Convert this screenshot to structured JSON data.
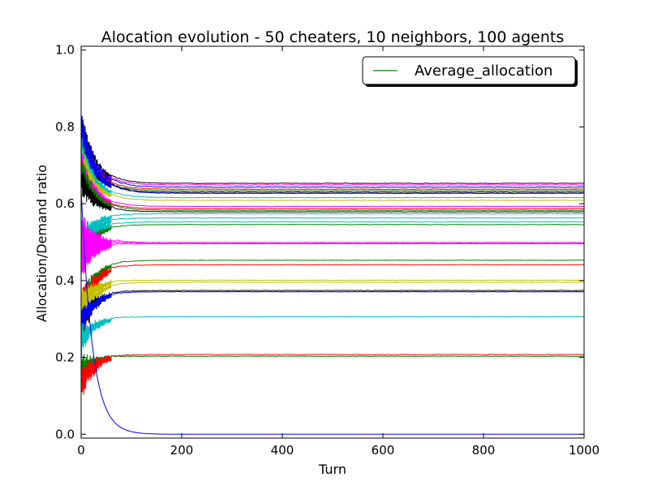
{
  "chart_data": {
    "type": "line",
    "title": "Alocation evolution - 50 cheaters, 10 neighbors, 100 agents",
    "xlabel": "Turn",
    "ylabel": "Allocation/Demand ratio",
    "xlim": [
      0,
      1000
    ],
    "ylim": [
      -0.01,
      1.01
    ],
    "xticks": [
      0,
      200,
      400,
      600,
      800,
      1000
    ],
    "xtick_labels": [
      "0",
      "200",
      "400",
      "600",
      "800",
      "1000"
    ],
    "yticks": [
      0.0,
      0.2,
      0.4,
      0.6,
      0.8,
      1.0
    ],
    "ytick_labels": [
      "0.0",
      "0.2",
      "0.4",
      "0.6",
      "0.8",
      "1.0"
    ],
    "grid": false,
    "legend": {
      "placement": "top-right",
      "entries": [
        {
          "name": "Average_allocation",
          "color": "#008000"
        }
      ]
    },
    "series": [
      {
        "color": "#000000",
        "start": 0.8,
        "final": 0.652,
        "noise": 0.014
      },
      {
        "color": "#ff00ff",
        "start": 0.78,
        "final": 0.648,
        "noise": 0.012
      },
      {
        "color": "#0000ff",
        "start": 0.79,
        "final": 0.642,
        "noise": 0.016
      },
      {
        "color": "#ff0000",
        "start": 0.77,
        "final": 0.637,
        "noise": 0.012
      },
      {
        "color": "#008000",
        "start": 0.76,
        "final": 0.633,
        "noise": 0.012
      },
      {
        "color": "#000000",
        "start": 0.78,
        "final": 0.629,
        "noise": 0.012
      },
      {
        "color": "#0000ff",
        "start": 0.8,
        "final": 0.626,
        "noise": 0.014
      },
      {
        "color": "#00bfbf",
        "start": 0.74,
        "final": 0.615,
        "noise": 0.012
      },
      {
        "color": "#bfbf00",
        "start": 0.72,
        "final": 0.608,
        "noise": 0.01
      },
      {
        "color": "#ff00ff",
        "start": 0.7,
        "final": 0.592,
        "noise": 0.012
      },
      {
        "color": "#ff0000",
        "start": 0.68,
        "final": 0.586,
        "noise": 0.012
      },
      {
        "color": "#008000",
        "start": 0.69,
        "final": 0.582,
        "noise": 0.012
      },
      {
        "color": "#000000",
        "start": 0.66,
        "final": 0.578,
        "noise": 0.012
      },
      {
        "color": "#00bfbf",
        "start": 0.5,
        "final": 0.573,
        "noise": 0.012
      },
      {
        "color": "#00bfbf",
        "start": 0.49,
        "final": 0.562,
        "noise": 0.012
      },
      {
        "color": "#00bfbf",
        "start": 0.48,
        "final": 0.552,
        "noise": 0.01
      },
      {
        "color": "#008000",
        "start": 0.46,
        "final": 0.545,
        "noise": 0.01
      },
      {
        "color": "#ff00ff",
        "start": 0.47,
        "final": 0.497,
        "noise": 0.018
      },
      {
        "color": "#ff00ff",
        "start": 0.52,
        "final": 0.497,
        "noise": 0.018
      },
      {
        "color": "#ff00ff",
        "start": 0.45,
        "final": 0.495,
        "noise": 0.014
      },
      {
        "color": "#008000",
        "start": 0.33,
        "final": 0.452,
        "noise": 0.012
      },
      {
        "color": "#ff0000",
        "start": 0.32,
        "final": 0.44,
        "noise": 0.016
      },
      {
        "color": "#bfbf00",
        "start": 0.34,
        "final": 0.4,
        "noise": 0.012
      },
      {
        "color": "#bfbf00",
        "start": 0.3,
        "final": 0.395,
        "noise": 0.01
      },
      {
        "color": "#000000",
        "start": 0.28,
        "final": 0.373,
        "noise": 0.014
      },
      {
        "color": "#0000ff",
        "start": 0.29,
        "final": 0.37,
        "noise": 0.01
      },
      {
        "color": "#00bfbf",
        "start": 0.24,
        "final": 0.305,
        "noise": 0.012
      },
      {
        "color": "#008000",
        "start": 0.17,
        "final": 0.202,
        "noise": 0.012
      },
      {
        "color": "#ff0000",
        "start": 0.13,
        "final": 0.206,
        "noise": 0.016
      },
      {
        "color": "#0000ff",
        "start": 0.64,
        "final": 0.0,
        "noise": 0.0
      }
    ]
  }
}
